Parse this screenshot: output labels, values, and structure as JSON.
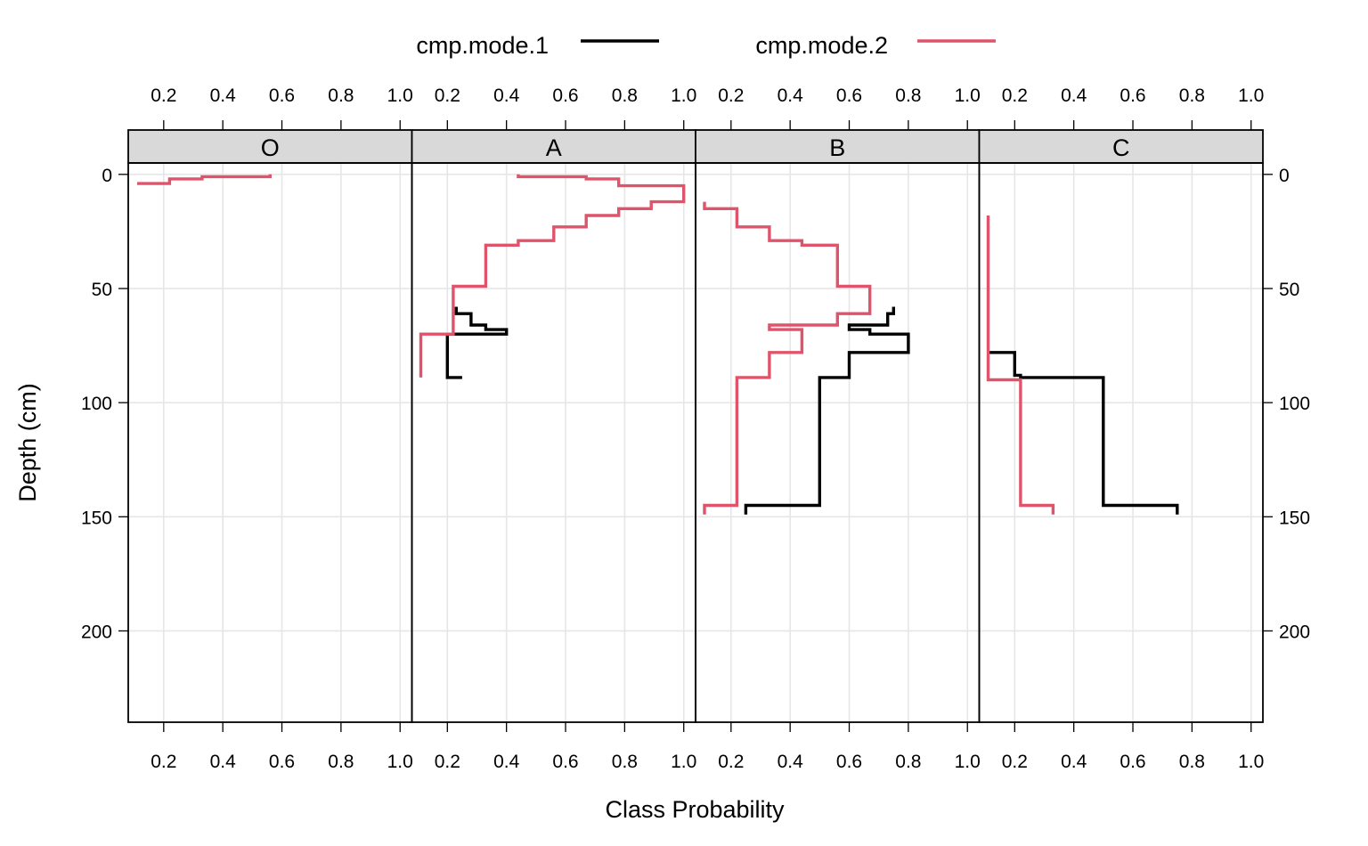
{
  "chart_data": {
    "type": "line",
    "xlabel": "Class Probability",
    "ylabel": "Depth (cm)",
    "xlim": [
      0.08,
      1.04
    ],
    "ylim": [
      240,
      -5
    ],
    "x_ticks": [
      0.2,
      0.4,
      0.6,
      0.8,
      1.0
    ],
    "x_tick_labels": [
      "0.2",
      "0.4",
      "0.6",
      "0.8",
      "1.0"
    ],
    "y_ticks": [
      0,
      50,
      100,
      150,
      200
    ],
    "y_tick_labels": [
      "0",
      "50",
      "100",
      "150",
      "200"
    ],
    "grid": true,
    "legend_position": "top",
    "legend": [
      {
        "name": "cmp.mode.1",
        "color": "#000000"
      },
      {
        "name": "cmp.mode.2",
        "color": "#DF536B"
      }
    ],
    "panels": [
      {
        "label": "O",
        "series": [
          {
            "name": "cmp.mode.2",
            "points": [
              [
                0.56,
                0
              ],
              [
                0.56,
                1
              ],
              [
                0.33,
                1
              ],
              [
                0.33,
                2
              ],
              [
                0.22,
                2
              ],
              [
                0.22,
                4
              ],
              [
                0.11,
                4
              ]
            ]
          }
        ]
      },
      {
        "label": "A",
        "series": [
          {
            "name": "cmp.mode.1",
            "points": [
              [
                0.23,
                58
              ],
              [
                0.23,
                61
              ],
              [
                0.28,
                61
              ],
              [
                0.28,
                66
              ],
              [
                0.33,
                66
              ],
              [
                0.33,
                68
              ],
              [
                0.4,
                68
              ],
              [
                0.4,
                70
              ],
              [
                0.2,
                70
              ],
              [
                0.2,
                89
              ],
              [
                0.25,
                89
              ]
            ]
          },
          {
            "name": "cmp.mode.2",
            "points": [
              [
                0.44,
                0
              ],
              [
                0.44,
                1
              ],
              [
                0.67,
                1
              ],
              [
                0.67,
                2
              ],
              [
                0.78,
                2
              ],
              [
                0.78,
                5
              ],
              [
                0.89,
                5
              ],
              [
                0.89,
                5
              ],
              [
                1.0,
                5
              ],
              [
                1.0,
                12
              ],
              [
                0.89,
                12
              ],
              [
                0.89,
                15
              ],
              [
                0.78,
                15
              ],
              [
                0.78,
                18
              ],
              [
                0.67,
                18
              ],
              [
                0.67,
                23
              ],
              [
                0.56,
                23
              ],
              [
                0.56,
                29
              ],
              [
                0.44,
                29
              ],
              [
                0.44,
                31
              ],
              [
                0.33,
                31
              ],
              [
                0.33,
                49
              ],
              [
                0.22,
                49
              ],
              [
                0.22,
                70
              ],
              [
                0.11,
                70
              ],
              [
                0.11,
                89
              ]
            ]
          }
        ]
      },
      {
        "label": "B",
        "series": [
          {
            "name": "cmp.mode.1",
            "points": [
              [
                0.75,
                58
              ],
              [
                0.75,
                61
              ],
              [
                0.73,
                61
              ],
              [
                0.73,
                66
              ],
              [
                0.6,
                66
              ],
              [
                0.6,
                68
              ],
              [
                0.67,
                68
              ],
              [
                0.67,
                70
              ],
              [
                0.8,
                70
              ],
              [
                0.8,
                78
              ],
              [
                0.6,
                78
              ],
              [
                0.6,
                89
              ],
              [
                0.5,
                89
              ],
              [
                0.5,
                145
              ],
              [
                0.25,
                145
              ],
              [
                0.25,
                149
              ]
            ]
          },
          {
            "name": "cmp.mode.2",
            "points": [
              [
                0.11,
                12
              ],
              [
                0.11,
                15
              ],
              [
                0.22,
                15
              ],
              [
                0.22,
                23
              ],
              [
                0.33,
                23
              ],
              [
                0.33,
                29
              ],
              [
                0.44,
                29
              ],
              [
                0.44,
                31
              ],
              [
                0.56,
                31
              ],
              [
                0.56,
                49
              ],
              [
                0.67,
                49
              ],
              [
                0.67,
                61
              ],
              [
                0.56,
                61
              ],
              [
                0.56,
                66
              ],
              [
                0.33,
                66
              ],
              [
                0.33,
                68
              ],
              [
                0.44,
                68
              ],
              [
                0.44,
                78
              ],
              [
                0.33,
                78
              ],
              [
                0.33,
                89
              ],
              [
                0.22,
                89
              ],
              [
                0.22,
                145
              ],
              [
                0.11,
                145
              ],
              [
                0.11,
                149
              ]
            ]
          }
        ]
      },
      {
        "label": "C",
        "series": [
          {
            "name": "cmp.mode.1",
            "points": [
              [
                0.11,
                78
              ],
              [
                0.2,
                78
              ],
              [
                0.2,
                88
              ],
              [
                0.22,
                88
              ],
              [
                0.22,
                89
              ],
              [
                0.5,
                89
              ],
              [
                0.5,
                145
              ],
              [
                0.75,
                145
              ],
              [
                0.75,
                149
              ]
            ]
          },
          {
            "name": "cmp.mode.2",
            "points": [
              [
                0.11,
                18
              ],
              [
                0.11,
                90
              ],
              [
                0.22,
                90
              ],
              [
                0.22,
                145
              ],
              [
                0.33,
                145
              ],
              [
                0.33,
                149
              ]
            ]
          }
        ]
      }
    ]
  }
}
